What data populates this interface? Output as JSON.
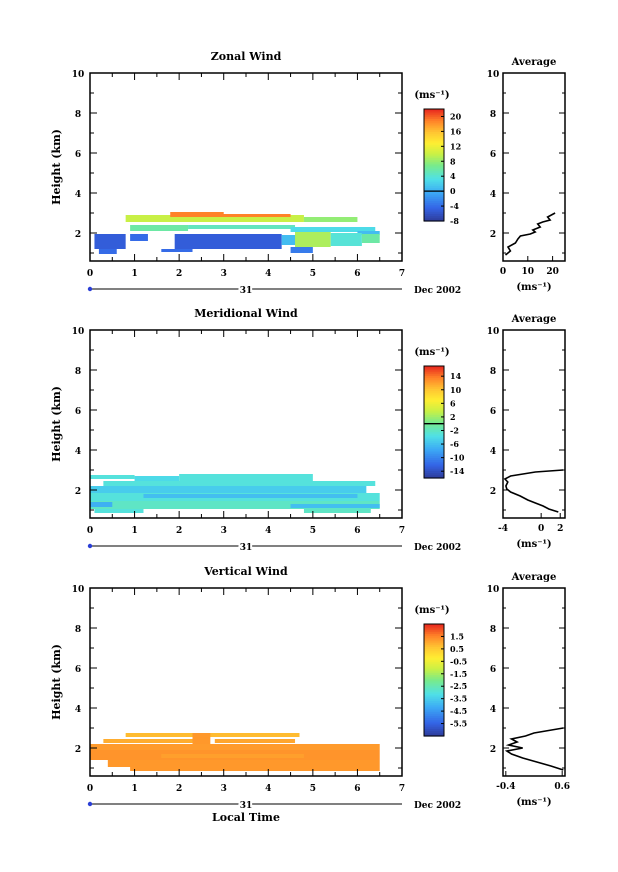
{
  "chart_data": [
    {
      "type": "heatmap",
      "title": "Zonal Wind",
      "xlabel": "",
      "ylabel": "Height (km)",
      "xlim": [
        0,
        7
      ],
      "ylim": [
        0.6,
        10
      ],
      "x_ticks": [
        "0",
        "1",
        "2",
        "3",
        "4",
        "5",
        "6",
        "7"
      ],
      "y_ticks": [
        "2",
        "4",
        "6",
        "8",
        "10"
      ],
      "date_label": "31",
      "month_label": "Dec 2002",
      "colorbar": {
        "unit": "(ms⁻¹)",
        "range": [
          -8,
          22
        ],
        "ticks": [
          "20",
          "16",
          "12",
          "8",
          "4",
          "0",
          "-4",
          "-8"
        ],
        "zero_line": 0
      },
      "blocks": [
        {
          "x": [
            0.8,
            4.8
          ],
          "y": [
            2.55,
            2.9
          ],
          "value": 10
        },
        {
          "x": [
            4.8,
            6.0
          ],
          "y": [
            2.55,
            2.8
          ],
          "value": 8
        },
        {
          "x": [
            1.8,
            4.5
          ],
          "y": [
            2.8,
            2.95
          ],
          "value": 19
        },
        {
          "x": [
            1.8,
            3.0
          ],
          "y": [
            2.95,
            3.05
          ],
          "value": 19
        },
        {
          "x": [
            0.9,
            2.2
          ],
          "y": [
            2.1,
            2.4
          ],
          "value": 6
        },
        {
          "x": [
            2.2,
            4.6
          ],
          "y": [
            2.2,
            2.4
          ],
          "value": 5
        },
        {
          "x": [
            4.5,
            6.4
          ],
          "y": [
            2.05,
            2.3
          ],
          "value": 3
        },
        {
          "x": [
            6.0,
            6.5
          ],
          "y": [
            1.9,
            2.1
          ],
          "value": 1
        },
        {
          "x": [
            0.1,
            0.8
          ],
          "y": [
            1.2,
            1.95
          ],
          "value": -5
        },
        {
          "x": [
            0.9,
            1.3
          ],
          "y": [
            1.6,
            1.95
          ],
          "value": -4
        },
        {
          "x": [
            1.9,
            4.3
          ],
          "y": [
            1.2,
            1.95
          ],
          "value": -5
        },
        {
          "x": [
            4.3,
            4.7
          ],
          "y": [
            1.4,
            1.9
          ],
          "value": 1
        },
        {
          "x": [
            4.6,
            5.4
          ],
          "y": [
            1.3,
            2.05
          ],
          "value": 9
        },
        {
          "x": [
            5.4,
            6.1
          ],
          "y": [
            1.35,
            2.0
          ],
          "value": 4
        },
        {
          "x": [
            6.1,
            6.5
          ],
          "y": [
            1.5,
            1.95
          ],
          "value": 6
        },
        {
          "x": [
            0.2,
            0.6
          ],
          "y": [
            0.95,
            1.2
          ],
          "value": -4
        },
        {
          "x": [
            1.6,
            2.3
          ],
          "y": [
            1.05,
            1.2
          ],
          "value": -4
        },
        {
          "x": [
            4.5,
            5.0
          ],
          "y": [
            1.0,
            1.3
          ],
          "value": -3
        }
      ],
      "average": {
        "title": "Average",
        "xlim": [
          0,
          25
        ],
        "x_ticks": [
          "0",
          "10",
          "20"
        ],
        "xlabel": "(ms⁻¹)",
        "points": [
          [
            1,
            0.9
          ],
          [
            3,
            1.1
          ],
          [
            2,
            1.3
          ],
          [
            5,
            1.5
          ],
          [
            6,
            1.7
          ],
          [
            7,
            1.85
          ],
          [
            11,
            1.95
          ],
          [
            13,
            2.05
          ],
          [
            12,
            2.15
          ],
          [
            15,
            2.3
          ],
          [
            14,
            2.45
          ],
          [
            16,
            2.55
          ],
          [
            19,
            2.65
          ],
          [
            18,
            2.8
          ],
          [
            21,
            3.0
          ]
        ]
      }
    },
    {
      "type": "heatmap",
      "title": "Meridional Wind",
      "xlabel": "",
      "ylabel": "Height (km)",
      "xlim": [
        0,
        7
      ],
      "ylim": [
        0.6,
        10
      ],
      "x_ticks": [
        "0",
        "1",
        "2",
        "3",
        "4",
        "5",
        "6",
        "7"
      ],
      "y_ticks": [
        "2",
        "4",
        "6",
        "8",
        "10"
      ],
      "date_label": "31",
      "month_label": "Dec 2002",
      "colorbar": {
        "unit": "(ms⁻¹)",
        "range": [
          -16,
          17
        ],
        "ticks": [
          "14",
          "10",
          "6",
          "2",
          "-2",
          "-6",
          "-10",
          "-14"
        ],
        "zero_line": 0
      },
      "blocks": [
        {
          "x": [
            0.0,
            1.0
          ],
          "y": [
            2.55,
            2.75
          ],
          "value": -3
        },
        {
          "x": [
            1.0,
            2.0
          ],
          "y": [
            2.4,
            2.7
          ],
          "value": -4
        },
        {
          "x": [
            2.0,
            5.0
          ],
          "y": [
            2.45,
            2.8
          ],
          "value": -3
        },
        {
          "x": [
            0.3,
            6.4
          ],
          "y": [
            2.2,
            2.45
          ],
          "value": -3
        },
        {
          "x": [
            0.0,
            6.2
          ],
          "y": [
            1.85,
            2.2
          ],
          "value": -5
        },
        {
          "x": [
            0.0,
            6.5
          ],
          "y": [
            1.45,
            1.85
          ],
          "value": -3
        },
        {
          "x": [
            1.2,
            6.0
          ],
          "y": [
            1.6,
            1.8
          ],
          "value": -6
        },
        {
          "x": [
            0.0,
            6.5
          ],
          "y": [
            1.05,
            1.45
          ],
          "value": -2
        },
        {
          "x": [
            4.5,
            6.5
          ],
          "y": [
            1.1,
            1.3
          ],
          "value": -6
        },
        {
          "x": [
            0.0,
            0.5
          ],
          "y": [
            1.15,
            1.4
          ],
          "value": -7
        },
        {
          "x": [
            0.1,
            1.2
          ],
          "y": [
            0.85,
            1.05
          ],
          "value": -3
        },
        {
          "x": [
            4.8,
            6.3
          ],
          "y": [
            0.85,
            1.05
          ],
          "value": -2
        }
      ],
      "average": {
        "title": "Average",
        "xlim": [
          -4,
          2.5
        ],
        "x_ticks": [
          "-4",
          "0",
          "2"
        ],
        "xlabel": "(ms⁻¹)",
        "points": [
          [
            1.8,
            0.9
          ],
          [
            0.8,
            1.05
          ],
          [
            0.2,
            1.2
          ],
          [
            -0.6,
            1.35
          ],
          [
            -1.4,
            1.5
          ],
          [
            -2.2,
            1.7
          ],
          [
            -3.2,
            1.9
          ],
          [
            -3.6,
            2.05
          ],
          [
            -3.7,
            2.2
          ],
          [
            -3.5,
            2.4
          ],
          [
            -3.8,
            2.55
          ],
          [
            -3.2,
            2.7
          ],
          [
            -0.6,
            2.9
          ],
          [
            2.3,
            3.0
          ]
        ]
      }
    },
    {
      "type": "heatmap",
      "title": "Vertical Wind",
      "xlabel": "Local Time",
      "ylabel": "Height (km)",
      "xlim": [
        0,
        7
      ],
      "ylim": [
        0.6,
        10
      ],
      "x_ticks": [
        "0",
        "1",
        "2",
        "3",
        "4",
        "5",
        "6",
        "7"
      ],
      "y_ticks": [
        "2",
        "4",
        "6",
        "8",
        "10"
      ],
      "date_label": "31",
      "month_label": "Dec 2002",
      "colorbar": {
        "unit": "(ms⁻¹)",
        "range": [
          -6.5,
          2.5
        ],
        "ticks": [
          "1.5",
          "0.5",
          "-0.5",
          "-1.5",
          "-2.5",
          "-3.5",
          "-4.5",
          "-5.5"
        ]
      },
      "blocks": [
        {
          "x": [
            0.8,
            4.7
          ],
          "y": [
            2.55,
            2.75
          ],
          "value": 0.8
        },
        {
          "x": [
            0.3,
            2.5
          ],
          "y": [
            2.25,
            2.45
          ],
          "value": 1.0
        },
        {
          "x": [
            2.8,
            4.6
          ],
          "y": [
            2.25,
            2.45
          ],
          "value": 1.1
        },
        {
          "x": [
            2.3,
            2.7
          ],
          "y": [
            1.95,
            2.75
          ],
          "value": 1.3
        },
        {
          "x": [
            0.0,
            6.5
          ],
          "y": [
            1.9,
            2.2
          ],
          "value": 1.25
        },
        {
          "x": [
            0.0,
            6.5
          ],
          "y": [
            1.4,
            1.9
          ],
          "value": 1.35
        },
        {
          "x": [
            0.4,
            6.5
          ],
          "y": [
            1.05,
            1.4
          ],
          "value": 1.3
        },
        {
          "x": [
            0.9,
            6.5
          ],
          "y": [
            0.85,
            1.05
          ],
          "value": 1.3
        },
        {
          "x": [
            1.6,
            4.8
          ],
          "y": [
            1.5,
            1.7
          ],
          "value": 1.2
        }
      ],
      "average": {
        "title": "Average",
        "xlim": [
          -0.45,
          0.65
        ],
        "x_ticks": [
          "-0.4",
          "0.6"
        ],
        "xlabel": "(ms⁻¹)",
        "points": [
          [
            0.62,
            0.9
          ],
          [
            0.4,
            1.1
          ],
          [
            0.15,
            1.3
          ],
          [
            -0.1,
            1.5
          ],
          [
            -0.3,
            1.7
          ],
          [
            -0.38,
            1.85
          ],
          [
            -0.1,
            2.0
          ],
          [
            -0.35,
            2.15
          ],
          [
            -0.2,
            2.3
          ],
          [
            -0.3,
            2.45
          ],
          [
            -0.05,
            2.6
          ],
          [
            0.1,
            2.75
          ],
          [
            0.62,
            3.0
          ]
        ]
      }
    }
  ]
}
